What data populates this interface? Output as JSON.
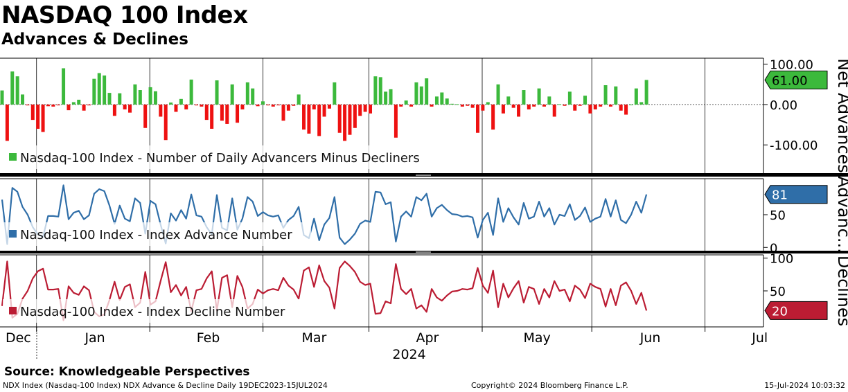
{
  "header": {
    "title": "NASDAQ 100 Index",
    "subtitle": "Advances & Declines"
  },
  "footer": {
    "source": "Source: Knowledgeable Perspectives",
    "left": "NDX Index (Nasdaq-100 Index) NDX Advance & Decline  Daily 19DEC2023-15JUL2024",
    "copyright": "Copyright© 2024 Bloomberg Finance L.P.",
    "timestamp": "15-Jul-2024 10:03:32"
  },
  "colors": {
    "positive": "#3cb93c",
    "negative": "#ee1111",
    "advance": "#2f6ea8",
    "decline": "#bb1c33",
    "grid": "#000000"
  },
  "chart_data": [
    {
      "type": "bar",
      "panel": "net",
      "axis_title": "Net Advances",
      "legend": "Nasdaq-100 Index - Number of Daily Advancers Minus Decliners",
      "ylim": [
        -170,
        115
      ],
      "yticks": [
        100,
        0,
        -100
      ],
      "ytick_labels": [
        "100.00",
        "0.00",
        "-100.00"
      ],
      "last_value_label": "61.00",
      "values": [
        35,
        -90,
        82,
        70,
        25,
        -2,
        -38,
        -60,
        -68,
        -4,
        -5,
        -2,
        90,
        -14,
        6,
        12,
        -15,
        -2,
        64,
        78,
        72,
        29,
        -28,
        28,
        -12,
        -20,
        50,
        36,
        -58,
        43,
        33,
        -30,
        -88,
        5,
        -18,
        14,
        -12,
        62,
        -2,
        -5,
        -38,
        -60,
        60,
        -40,
        -48,
        50,
        -45,
        -12,
        55,
        40,
        -4,
        8,
        -2,
        -5,
        -2,
        -40,
        -15,
        -3,
        25,
        -62,
        -72,
        -12,
        -78,
        -30,
        -10,
        55,
        -70,
        -90,
        -75,
        -58,
        -28,
        -18,
        -22,
        70,
        68,
        32,
        38,
        -82,
        -5,
        10,
        -5,
        55,
        45,
        65,
        -5,
        20,
        30,
        15,
        2,
        1,
        -5,
        -3,
        -8,
        -70,
        -15,
        6,
        -62,
        50,
        -22,
        20,
        -8,
        -30,
        36,
        -12,
        -5,
        40,
        -5,
        20,
        -30,
        1,
        -3,
        32,
        -15,
        -3,
        22,
        -22,
        -12,
        -5,
        48,
        -5,
        45,
        -15,
        -25,
        0,
        40,
        6,
        61
      ],
      "x_start_day": 0,
      "x_step_days": 1.4
    },
    {
      "type": "line",
      "panel": "advance",
      "axis_title": "Advanc...",
      "legend": "Nasdaq-100 Index - Index Advance Number",
      "ylim": [
        -5,
        105
      ],
      "yticks": [
        50,
        0
      ],
      "ytick_labels": [
        "50",
        "0"
      ],
      "last_value_label": "81",
      "values": [
        73,
        5,
        91,
        85,
        62,
        50,
        31,
        20,
        16,
        48,
        48,
        47,
        95,
        43,
        53,
        56,
        43,
        49,
        82,
        89,
        86,
        64,
        36,
        64,
        44,
        40,
        75,
        68,
        21,
        71,
        66,
        35,
        6,
        52,
        41,
        57,
        44,
        81,
        49,
        47,
        31,
        20,
        80,
        30,
        26,
        75,
        27,
        44,
        77,
        70,
        48,
        54,
        49,
        47,
        49,
        30,
        42,
        48,
        62,
        19,
        14,
        44,
        11,
        35,
        45,
        77,
        15,
        5,
        12,
        21,
        36,
        41,
        39,
        85,
        84,
        66,
        69,
        9,
        47,
        55,
        47,
        77,
        72,
        82,
        47,
        60,
        65,
        57,
        51,
        50,
        47,
        48,
        46,
        15,
        42,
        53,
        19,
        75,
        39,
        60,
        46,
        35,
        68,
        44,
        47,
        70,
        47,
        60,
        35,
        50,
        48,
        66,
        42,
        48,
        61,
        39,
        44,
        47,
        74,
        47,
        72,
        42,
        37,
        50,
        70,
        53,
        81
      ],
      "x_start_day": 0,
      "x_step_days": 1.4
    },
    {
      "type": "line",
      "panel": "decline",
      "axis_title": "Declines",
      "legend": "Nasdaq-100 Index - Index Decline Number",
      "ylim": [
        -5,
        105
      ],
      "yticks": [
        100,
        50
      ],
      "ytick_labels": [
        "100",
        "50"
      ],
      "last_value_label": "20",
      "values": [
        27,
        95,
        9,
        15,
        38,
        50,
        69,
        80,
        84,
        52,
        52,
        53,
        5,
        57,
        47,
        44,
        57,
        51,
        18,
        11,
        14,
        36,
        64,
        36,
        56,
        60,
        25,
        32,
        79,
        29,
        34,
        65,
        94,
        48,
        59,
        43,
        56,
        19,
        51,
        53,
        69,
        80,
        20,
        70,
        74,
        25,
        73,
        56,
        23,
        30,
        52,
        46,
        51,
        53,
        51,
        70,
        58,
        52,
        38,
        81,
        86,
        56,
        89,
        65,
        55,
        23,
        85,
        95,
        88,
        79,
        64,
        59,
        61,
        15,
        16,
        34,
        31,
        91,
        53,
        45,
        53,
        23,
        28,
        18,
        53,
        40,
        35,
        43,
        49,
        50,
        53,
        52,
        54,
        85,
        58,
        47,
        81,
        25,
        61,
        40,
        54,
        65,
        32,
        56,
        53,
        30,
        53,
        40,
        65,
        50,
        52,
        34,
        58,
        52,
        39,
        61,
        56,
        53,
        26,
        53,
        28,
        58,
        63,
        50,
        30,
        47,
        20
      ],
      "x_start_day": 0,
      "x_step_days": 1.4
    }
  ],
  "x_axis": {
    "domain_days": [
      0,
      209
    ],
    "month_labels": [
      {
        "label": "Dec",
        "day": 5
      },
      {
        "label": "Jan",
        "day": 26
      },
      {
        "label": "Feb",
        "day": 57
      },
      {
        "label": "Mar",
        "day": 86
      },
      {
        "label": "Apr",
        "day": 117
      },
      {
        "label": "May",
        "day": 147
      },
      {
        "label": "Jun",
        "day": 178
      },
      {
        "label": "Jul",
        "day": 208
      }
    ],
    "month_boundaries": [
      10,
      41,
      72,
      101,
      132,
      162,
      193
    ],
    "year_label": {
      "label": "2024",
      "day": 112
    }
  }
}
